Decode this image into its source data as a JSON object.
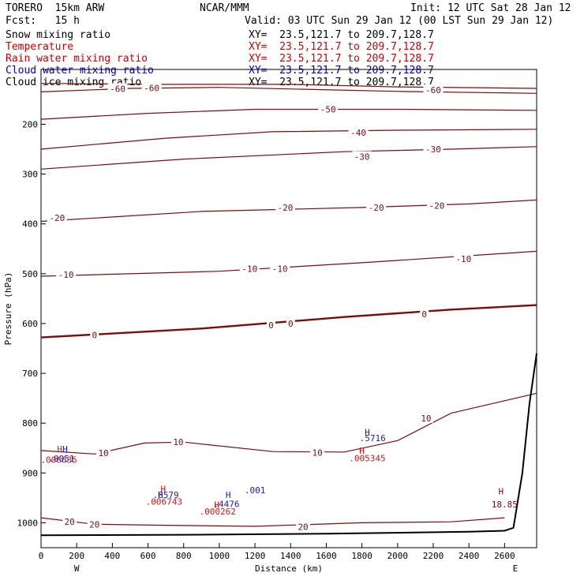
{
  "header": {
    "model": "TORERO  15km ARW",
    "org": "NCAR/MMM",
    "init": "Init: 12 UTC Sat 28 Jan 12",
    "fcst": "Fcst:   15 h",
    "valid": "Valid: 03 UTC Sun 29 Jan 12 (00 LST Sun 29 Jan 12)"
  },
  "legend": [
    {
      "label": "Snow mixing ratio",
      "xy": "XY=  23.5,121.7 to 209.7,128.7",
      "color": "#000000"
    },
    {
      "label": "Temperature",
      "xy": "XY=  23.5,121.7 to 209.7,128.7",
      "color": "#cc0000"
    },
    {
      "label": "Rain water mixing ratio",
      "xy": "XY=  23.5,121.7 to 209.7,128.7",
      "color": "#cc0000"
    },
    {
      "label": "Cloud water mixing ratio",
      "xy": "XY=  23.5,121.7 to 209.7,128.7",
      "color": "#0000cc"
    },
    {
      "label": "Cloud ice mixing ratio",
      "xy": "XY=  23.5,121.7 to 209.7,128.7",
      "color": "#000000"
    }
  ],
  "colors": {
    "temperature": "#7a0c0c",
    "cloud_water": "#1a1acc",
    "rain_water": "#cc1a1a",
    "terrain": "#000000"
  },
  "chart_data": {
    "type": "contour_cross_section",
    "xlabel": "Distance (km)",
    "ylabel": "Pressure (hPa)",
    "xlim": [
      0,
      2780
    ],
    "ylim": [
      1050,
      90
    ],
    "x_ticks": [
      0,
      200,
      400,
      600,
      800,
      1000,
      1200,
      1400,
      1600,
      1800,
      2000,
      2200,
      2400,
      2600
    ],
    "y_ticks": [
      200,
      300,
      400,
      500,
      600,
      700,
      800,
      900,
      1000
    ],
    "endpoints": {
      "left": "W",
      "right": "E"
    },
    "temperature_contours": [
      {
        "value": -60,
        "label": "-60",
        "points": [
          [
            0,
            118
          ],
          [
            700,
            120
          ],
          [
            1400,
            120
          ],
          [
            2000,
            125
          ],
          [
            2780,
            128
          ]
        ]
      },
      {
        "value": -60,
        "label": "-60",
        "points": [
          [
            0,
            135
          ],
          [
            500,
            128
          ],
          [
            1000,
            126
          ],
          [
            2000,
            134
          ],
          [
            2780,
            138
          ]
        ]
      },
      {
        "value": -50,
        "label": "-50",
        "points": [
          [
            0,
            190
          ],
          [
            600,
            178
          ],
          [
            1200,
            170
          ],
          [
            2000,
            170
          ],
          [
            2780,
            172
          ]
        ]
      },
      {
        "value": -40,
        "label": "-40",
        "points": [
          [
            0,
            250
          ],
          [
            700,
            228
          ],
          [
            1300,
            215
          ],
          [
            2000,
            212
          ],
          [
            2780,
            210
          ]
        ]
      },
      {
        "value": -30,
        "label": "-30",
        "points": [
          [
            0,
            290
          ],
          [
            800,
            270
          ],
          [
            1700,
            255
          ],
          [
            2300,
            250
          ],
          [
            2780,
            245
          ]
        ]
      },
      {
        "value": -20,
        "label": "-20",
        "points": [
          [
            0,
            395
          ],
          [
            900,
            375
          ],
          [
            1800,
            367
          ],
          [
            2400,
            360
          ],
          [
            2780,
            352
          ]
        ]
      },
      {
        "value": -10,
        "label": "-10",
        "points": [
          [
            0,
            505
          ],
          [
            1000,
            495
          ],
          [
            1800,
            478
          ],
          [
            2780,
            455
          ]
        ]
      },
      {
        "value": 0,
        "label": "0",
        "points": [
          [
            0,
            628
          ],
          [
            900,
            610
          ],
          [
            1700,
            587
          ],
          [
            2300,
            572
          ],
          [
            2780,
            563
          ]
        ]
      },
      {
        "value": 10,
        "label": "10",
        "points": [
          [
            0,
            855
          ],
          [
            300,
            862
          ],
          [
            580,
            840
          ],
          [
            800,
            838
          ],
          [
            1300,
            857
          ],
          [
            1700,
            858
          ],
          [
            2000,
            835
          ],
          [
            2300,
            780
          ],
          [
            2600,
            755
          ],
          [
            2780,
            740
          ]
        ]
      },
      {
        "value": 20,
        "label": "20",
        "points": [
          [
            0,
            990
          ],
          [
            300,
            1003
          ],
          [
            700,
            1005
          ],
          [
            1200,
            1007
          ],
          [
            1800,
            1000
          ],
          [
            2300,
            998
          ],
          [
            2600,
            990
          ]
        ]
      }
    ],
    "label_annotations": [
      {
        "text": "-60",
        "x": 430,
        "y": 129
      },
      {
        "text": "-60",
        "x": 620,
        "y": 127
      },
      {
        "text": "-60",
        "x": 2200,
        "y": 131
      },
      {
        "text": "-50",
        "x": 1610,
        "y": 170
      },
      {
        "text": "-40",
        "x": 1780,
        "y": 217
      },
      {
        "text": "-30",
        "x": 1800,
        "y": 265
      },
      {
        "text": "-30",
        "x": 2200,
        "y": 250
      },
      {
        "text": "-20",
        "x": 90,
        "y": 388
      },
      {
        "text": "-20",
        "x": 1370,
        "y": 367
      },
      {
        "text": "-20",
        "x": 1880,
        "y": 367
      },
      {
        "text": "-20",
        "x": 2220,
        "y": 363
      },
      {
        "text": "-10",
        "x": 140,
        "y": 502
      },
      {
        "text": "-10",
        "x": 1170,
        "y": 490
      },
      {
        "text": "-10",
        "x": 1340,
        "y": 490
      },
      {
        "text": "-10",
        "x": 2370,
        "y": 470
      },
      {
        "text": "0",
        "x": 300,
        "y": 623
      },
      {
        "text": "0",
        "x": 1290,
        "y": 603
      },
      {
        "text": "0",
        "x": 1400,
        "y": 600
      },
      {
        "text": "0",
        "x": 2150,
        "y": 581
      },
      {
        "text": "10",
        "x": 350,
        "y": 860
      },
      {
        "text": "10",
        "x": 770,
        "y": 838
      },
      {
        "text": "10",
        "x": 1550,
        "y": 859
      },
      {
        "text": "10",
        "x": 2160,
        "y": 790
      },
      {
        "text": "20",
        "x": 160,
        "y": 998
      },
      {
        "text": "20",
        "x": 300,
        "y": 1003
      },
      {
        "text": "20",
        "x": 1470,
        "y": 1008
      }
    ],
    "max_markers": [
      {
        "text": "H",
        "x": 105,
        "y": 852,
        "color": "#cc1a1a"
      },
      {
        "text": "H",
        "x": 135,
        "y": 852,
        "color": "#1a1acc"
      },
      {
        "text": ".006635",
        "x": 100,
        "y": 873,
        "color": "#cc1a1a"
      },
      {
        "text": ".0051",
        "x": 115,
        "y": 871,
        "color": "#1a1acc"
      },
      {
        "text": "H",
        "x": 685,
        "y": 932,
        "color": "#cc1a1a"
      },
      {
        "text": ".6579",
        "x": 700,
        "y": 944,
        "color": "#1a1acc"
      },
      {
        "text": "H",
        "x": 670,
        "y": 944,
        "color": "#1a1acc"
      },
      {
        "text": ".006743",
        "x": 690,
        "y": 957,
        "color": "#cc1a1a"
      },
      {
        "text": "H",
        "x": 1050,
        "y": 944,
        "color": "#1a1acc"
      },
      {
        "text": ".4476",
        "x": 1040,
        "y": 962,
        "color": "#1a1acc"
      },
      {
        "text": "H",
        "x": 985,
        "y": 964,
        "color": "#cc1a1a"
      },
      {
        "text": ".000262",
        "x": 990,
        "y": 977,
        "color": "#cc1a1a"
      },
      {
        "text": ".001",
        "x": 1200,
        "y": 934,
        "color": "#1a1acc"
      },
      {
        "text": "H",
        "x": 1830,
        "y": 818,
        "color": "#1a1acc"
      },
      {
        "text": ".5716",
        "x": 1860,
        "y": 830,
        "color": "#1a1acc"
      },
      {
        "text": "H",
        "x": 1800,
        "y": 855,
        "color": "#cc1a1a"
      },
      {
        "text": ".005345",
        "x": 1830,
        "y": 870,
        "color": "#cc1a1a"
      },
      {
        "text": "H",
        "x": 2580,
        "y": 937,
        "color": "#7a0c0c"
      },
      {
        "text": "18.85",
        "x": 2600,
        "y": 963,
        "color": "#7a0c0c"
      }
    ],
    "terrain": [
      [
        0,
        1025
      ],
      [
        800,
        1024
      ],
      [
        1600,
        1022
      ],
      [
        2400,
        1018
      ],
      [
        2600,
        1016
      ],
      [
        2650,
        1010
      ],
      [
        2700,
        900
      ],
      [
        2740,
        760
      ],
      [
        2780,
        660
      ]
    ]
  }
}
